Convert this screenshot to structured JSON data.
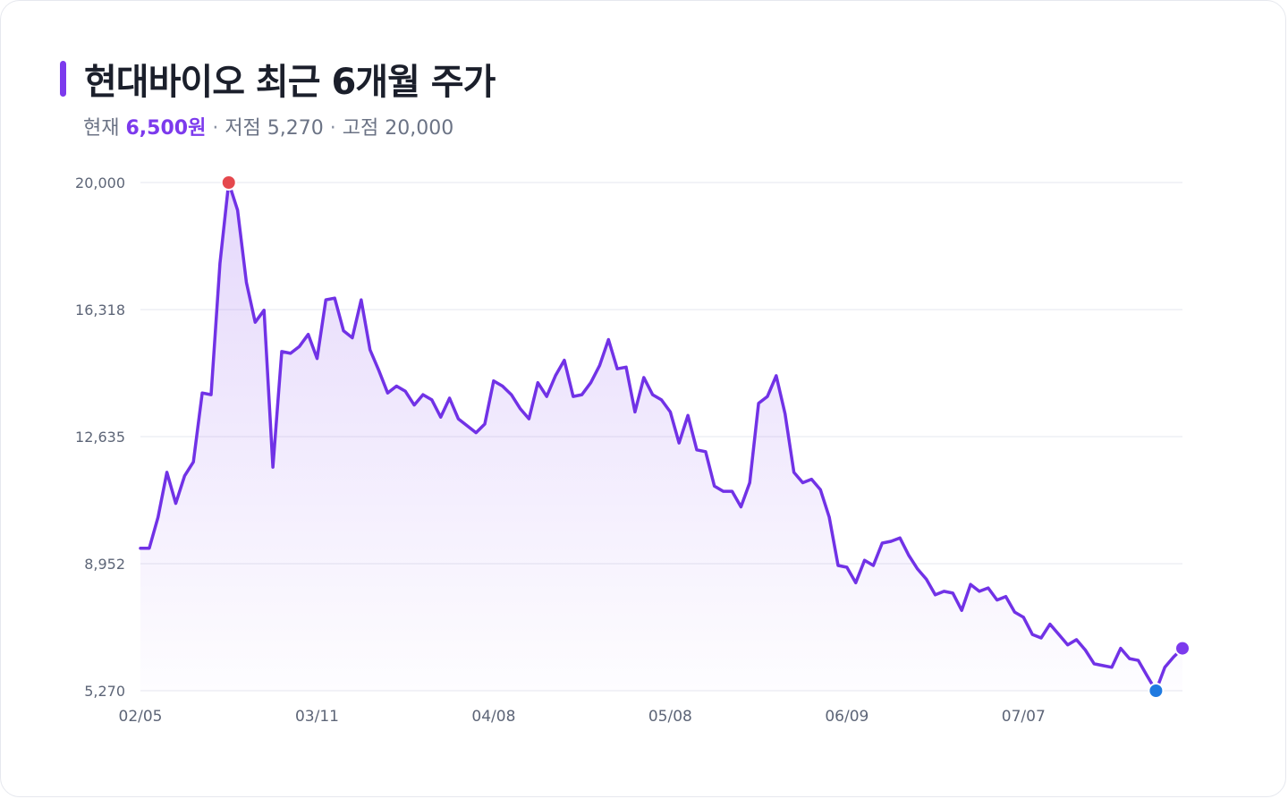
{
  "title": "현대바이오 최근 6개월 주가",
  "summary": {
    "current_label": "현재",
    "current_value": "6,500원",
    "sep1": "·",
    "low_label": "저점",
    "low_value": "5,270",
    "sep2": "·",
    "high_label": "고점",
    "high_value": "20,000"
  },
  "colors": {
    "accent": "#7c3aed",
    "line": "#7132e6",
    "grid": "#e5e7ef",
    "high_marker": "#e5484d",
    "low_marker": "#1f7ae0",
    "last_marker": "#7c3aed"
  },
  "chart_data": {
    "type": "area",
    "title": "",
    "xlabel": "",
    "ylabel": "",
    "ylim": [
      5270,
      20000
    ],
    "yticks": [
      5270,
      8952,
      12635,
      16318,
      20000
    ],
    "ytick_labels": [
      "5,270",
      "8,952",
      "12,635",
      "16,318",
      "20,000"
    ],
    "xtick_labels": [
      "02/05",
      "03/11",
      "04/08",
      "05/08",
      "06/09",
      "07/07"
    ],
    "xtick_index": [
      0,
      20,
      40,
      60,
      80,
      100
    ],
    "grid": true,
    "legend": "none",
    "series": [
      {
        "values": [
          9400,
          9400,
          10300,
          11600,
          10700,
          11500,
          11900,
          13900,
          13850,
          17650,
          20000,
          19200,
          17100,
          15950,
          16300,
          11750,
          15100,
          15050,
          15250,
          15600,
          14900,
          16600,
          16650,
          15700,
          15500,
          16600,
          15150,
          14550,
          13900,
          14100,
          13950,
          13550,
          13850,
          13700,
          13200,
          13750,
          13150,
          12950,
          12750,
          13000,
          14250,
          14100,
          13850,
          13450,
          13150,
          14200,
          13800,
          14400,
          14850,
          13800,
          13850,
          14200,
          14700,
          15450,
          14600,
          14650,
          13350,
          14350,
          13850,
          13700,
          13350,
          12450,
          13250,
          12250,
          12200,
          11200,
          11050,
          11050,
          10600,
          11300,
          13600,
          13800,
          14400,
          13300,
          11600,
          11300,
          11400,
          11100,
          10300,
          8900,
          8850,
          8400,
          9050,
          8900,
          9550,
          9600,
          9700,
          9200,
          8800,
          8500,
          8050,
          8150,
          8100,
          7600,
          8350,
          8150,
          8250,
          7900,
          8000,
          7550,
          7400,
          6900,
          6800,
          7200,
          6900,
          6600,
          6750,
          6450,
          6050,
          6000,
          5950,
          6500,
          6200,
          6150,
          5700,
          5270,
          5950,
          6250,
          6500
        ]
      }
    ],
    "markers": {
      "high": {
        "index": 10,
        "value": 20000
      },
      "low": {
        "index": 115,
        "value": 5270
      },
      "last": {
        "index": 118,
        "value": 6500
      }
    }
  }
}
